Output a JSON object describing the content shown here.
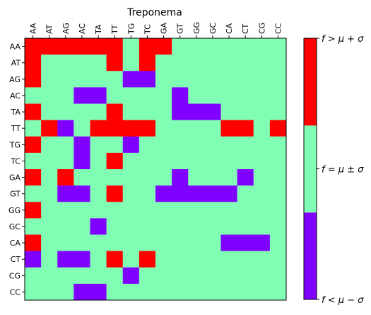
{
  "chart_data": {
    "type": "heatmap",
    "title": "Treponema",
    "x_labels": [
      "AA",
      "AT",
      "AG",
      "AC",
      "TA",
      "TT",
      "TG",
      "TC",
      "GA",
      "GT",
      "GG",
      "GC",
      "CA",
      "CT",
      "CG",
      "CC"
    ],
    "y_labels": [
      "AA",
      "AT",
      "AG",
      "AC",
      "TA",
      "TT",
      "TG",
      "TC",
      "GA",
      "GT",
      "GG",
      "GC",
      "CA",
      "CT",
      "CG",
      "CC"
    ],
    "categories": [
      {
        "code": -1,
        "label": "f < μ − σ",
        "color": "#8000ff"
      },
      {
        "code": 0,
        "label": "f = μ ± σ",
        "color": "#80ffb4"
      },
      {
        "code": 1,
        "label": "f > μ + σ",
        "color": "#ff0000"
      }
    ],
    "values": [
      [
        1,
        1,
        1,
        1,
        1,
        1,
        0,
        1,
        1,
        0,
        0,
        0,
        0,
        0,
        0,
        0
      ],
      [
        1,
        0,
        0,
        0,
        0,
        1,
        0,
        1,
        0,
        0,
        0,
        0,
        0,
        0,
        0,
        0
      ],
      [
        1,
        0,
        0,
        0,
        0,
        0,
        -1,
        -1,
        0,
        0,
        0,
        0,
        0,
        0,
        0,
        0
      ],
      [
        0,
        0,
        0,
        -1,
        -1,
        0,
        0,
        0,
        0,
        -1,
        0,
        0,
        0,
        0,
        0,
        0
      ],
      [
        1,
        0,
        0,
        0,
        0,
        1,
        0,
        0,
        0,
        -1,
        -1,
        -1,
        0,
        0,
        0,
        0
      ],
      [
        0,
        1,
        -1,
        0,
        1,
        1,
        1,
        1,
        0,
        0,
        0,
        0,
        1,
        1,
        0,
        1
      ],
      [
        1,
        0,
        0,
        -1,
        0,
        0,
        -1,
        0,
        0,
        0,
        0,
        0,
        0,
        0,
        0,
        0
      ],
      [
        0,
        0,
        0,
        -1,
        0,
        1,
        0,
        0,
        0,
        0,
        0,
        0,
        0,
        0,
        0,
        0
      ],
      [
        1,
        0,
        1,
        0,
        0,
        0,
        0,
        0,
        0,
        -1,
        0,
        0,
        0,
        -1,
        0,
        0
      ],
      [
        0,
        0,
        -1,
        -1,
        0,
        1,
        0,
        0,
        -1,
        -1,
        -1,
        -1,
        -1,
        0,
        0,
        0
      ],
      [
        1,
        0,
        0,
        0,
        0,
        0,
        0,
        0,
        0,
        0,
        0,
        0,
        0,
        0,
        0,
        0
      ],
      [
        0,
        0,
        0,
        0,
        -1,
        0,
        0,
        0,
        0,
        0,
        0,
        0,
        0,
        0,
        0,
        0
      ],
      [
        1,
        0,
        0,
        0,
        0,
        0,
        0,
        0,
        0,
        0,
        0,
        0,
        -1,
        -1,
        -1,
        0
      ],
      [
        -1,
        0,
        -1,
        -1,
        0,
        1,
        0,
        1,
        0,
        0,
        0,
        0,
        0,
        0,
        0,
        0
      ],
      [
        0,
        0,
        0,
        0,
        0,
        0,
        -1,
        0,
        0,
        0,
        0,
        0,
        0,
        0,
        0,
        0
      ],
      [
        0,
        0,
        0,
        -1,
        -1,
        0,
        0,
        0,
        0,
        0,
        0,
        0,
        0,
        0,
        0,
        0
      ]
    ]
  }
}
